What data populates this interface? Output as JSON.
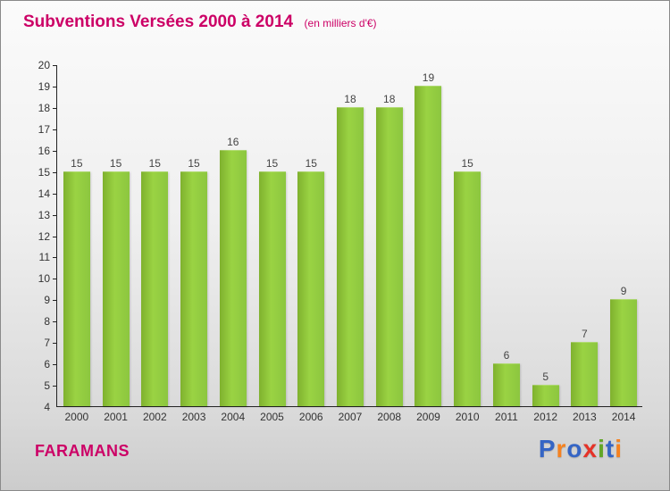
{
  "header": {
    "title": "Subventions Versées 2000 à 2014",
    "subtitle": "(en milliers d'€)"
  },
  "footer": {
    "name": "FARAMANS"
  },
  "logo": {
    "text": "Proxiti",
    "letters": [
      {
        "ch": "P",
        "color": "#3565c5"
      },
      {
        "ch": "r",
        "color": "#f58220"
      },
      {
        "ch": "o",
        "color": "#3565c5"
      },
      {
        "ch": "x",
        "color": "#e53228"
      },
      {
        "ch": "i",
        "color": "#61a625"
      },
      {
        "ch": "t",
        "color": "#3565c5"
      },
      {
        "ch": "i",
        "color": "#f58220"
      }
    ]
  },
  "chart_data": {
    "type": "bar",
    "title": "Subventions Versées 2000 à 2014",
    "subtitle": "(en milliers d'€)",
    "categories": [
      "2000",
      "2001",
      "2002",
      "2003",
      "2004",
      "2005",
      "2006",
      "2007",
      "2008",
      "2009",
      "2010",
      "2011",
      "2012",
      "2013",
      "2014"
    ],
    "values": [
      15,
      15,
      15,
      15,
      16,
      15,
      15,
      18,
      18,
      19,
      15,
      6,
      5,
      7,
      9
    ],
    "xlabel": "",
    "ylabel": "",
    "ylim": [
      4,
      20
    ],
    "ytick_step": 1,
    "grid": false,
    "legend": false,
    "bar_color": "#8cc63f",
    "accent_color": "#cc0066"
  }
}
